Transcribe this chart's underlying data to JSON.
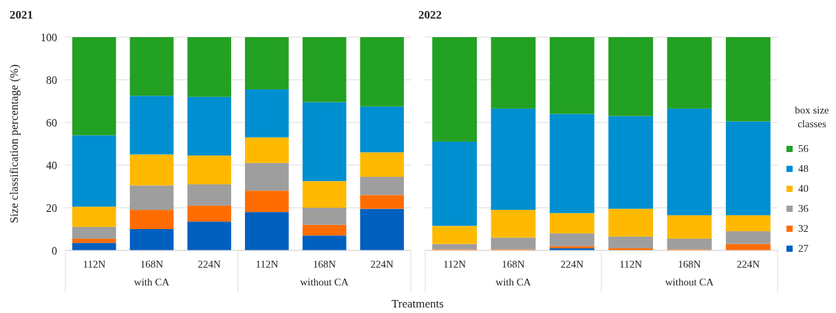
{
  "chart_data": [
    {
      "type": "bar",
      "title": "2021",
      "ylabel": "Size classification percentage (%)",
      "xlabel": "Treatments",
      "stacked": true,
      "categories": [
        "112N",
        "168N",
        "224N",
        "112N",
        "168N",
        "224N"
      ],
      "annotations": [
        "with CA",
        "without CA"
      ],
      "ylim": [
        0,
        100
      ],
      "yticks": [
        0,
        20,
        40,
        60,
        80,
        100
      ],
      "grid": "y",
      "legend": false,
      "series": [
        {
          "color": "#0060c0",
          "values": [
            3.5,
            10,
            13.5,
            18,
            7,
            19.5
          ]
        },
        {
          "color": "#ff6d00",
          "values": [
            2,
            9,
            7.5,
            10,
            5,
            6.5
          ]
        },
        {
          "color": "#9e9e9e",
          "values": [
            5.5,
            11.5,
            10,
            13,
            8,
            8.5
          ]
        },
        {
          "color": "#ffb900",
          "values": [
            9.5,
            14.5,
            13.5,
            12,
            12.5,
            11.5
          ]
        },
        {
          "color": "#008fd0",
          "values": [
            33.5,
            27.5,
            27.5,
            22.5,
            37,
            21.5
          ]
        },
        {
          "color": "#23a123",
          "values": [
            46,
            27.5,
            28,
            24.5,
            30.5,
            32.5
          ]
        }
      ]
    },
    {
      "type": "bar",
      "title": "2022",
      "stacked": true,
      "legend_title": "box size classes",
      "categories": [
        "112N",
        "168N",
        "224N",
        "112N",
        "168N",
        "224N"
      ],
      "annotations": [
        "with CA",
        "without CA"
      ],
      "ylim": [
        0,
        100
      ],
      "yticks": [
        0,
        20,
        40,
        60,
        80,
        100
      ],
      "tick_labels": "x",
      "grid": "y",
      "legend": "right",
      "series": [
        {
          "name": "27",
          "color": "#0060c0",
          "values": [
            0,
            0,
            1,
            null,
            0,
            null
          ]
        },
        {
          "name": "32",
          "color": "#ff6d00",
          "values": [
            0.5,
            0.5,
            1,
            1,
            0.5,
            3
          ]
        },
        {
          "name": "36",
          "color": "#9e9e9e",
          "values": [
            2.5,
            5.5,
            6,
            5.5,
            5,
            6
          ]
        },
        {
          "name": "40",
          "color": "#ffb900",
          "values": [
            8.5,
            13,
            9.5,
            13,
            11,
            7.5
          ]
        },
        {
          "name": "48",
          "color": "#008fd0",
          "values": [
            39.5,
            47.5,
            46.5,
            43.5,
            50,
            44
          ]
        },
        {
          "name": "56",
          "color": "#23a123",
          "values": [
            49,
            33.5,
            36,
            37,
            33.5,
            39.5
          ]
        }
      ]
    }
  ]
}
